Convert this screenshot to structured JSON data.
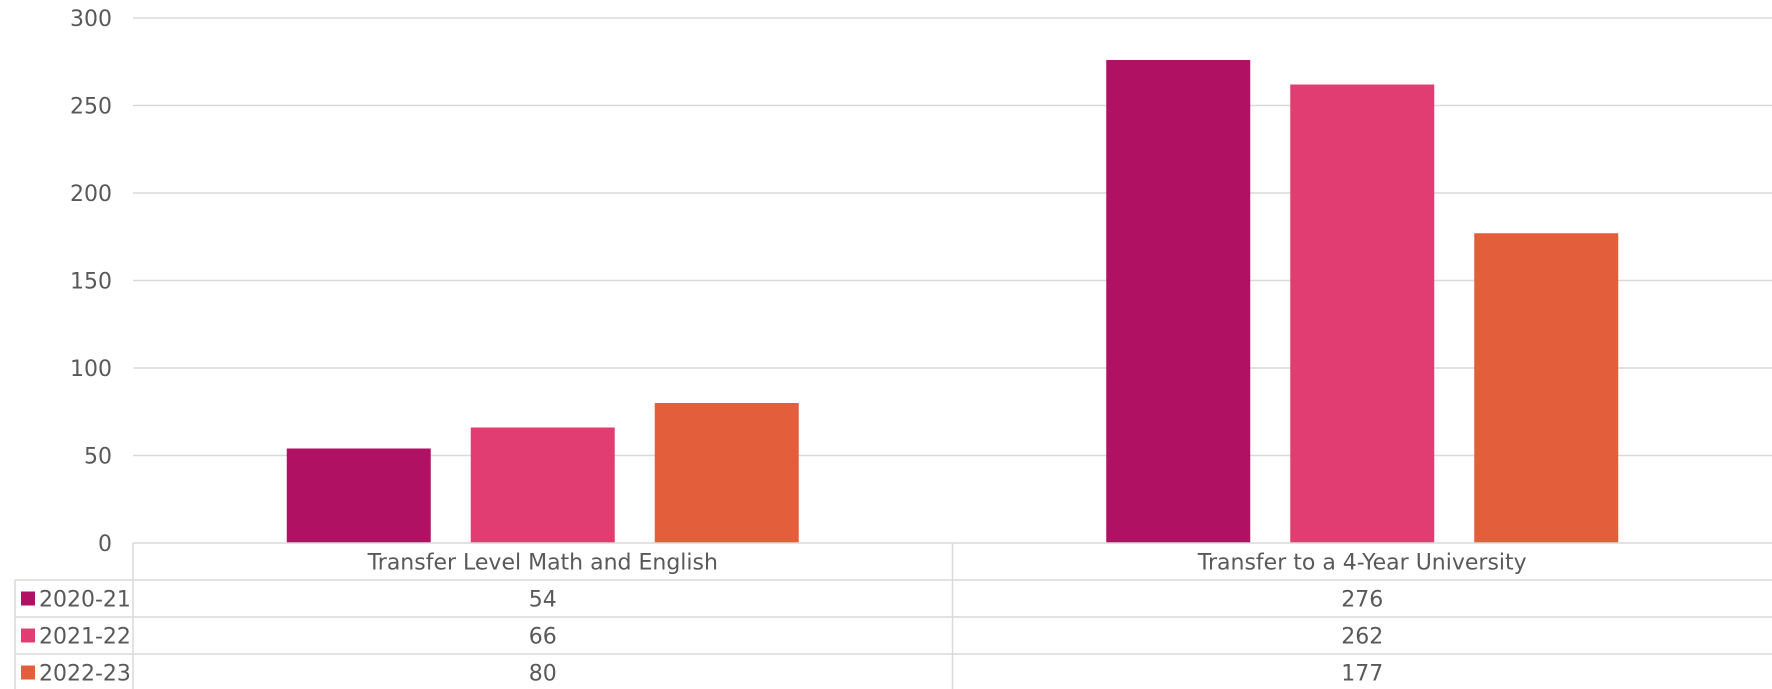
{
  "chart_data": {
    "type": "bar",
    "categories": [
      "Transfer Level Math and English",
      "Transfer to a 4-Year University"
    ],
    "series": [
      {
        "name": "2020-21",
        "values": [
          54,
          276
        ],
        "color": "#B01163"
      },
      {
        "name": "2021-22",
        "values": [
          66,
          262
        ],
        "color": "#E23D72"
      },
      {
        "name": "2022-23",
        "values": [
          80,
          177
        ],
        "color": "#E35F3C"
      }
    ],
    "ylim": [
      0,
      300
    ],
    "yticks": [
      0,
      50,
      100,
      150,
      200,
      250,
      300
    ],
    "grid": true,
    "legend": "data-table"
  }
}
